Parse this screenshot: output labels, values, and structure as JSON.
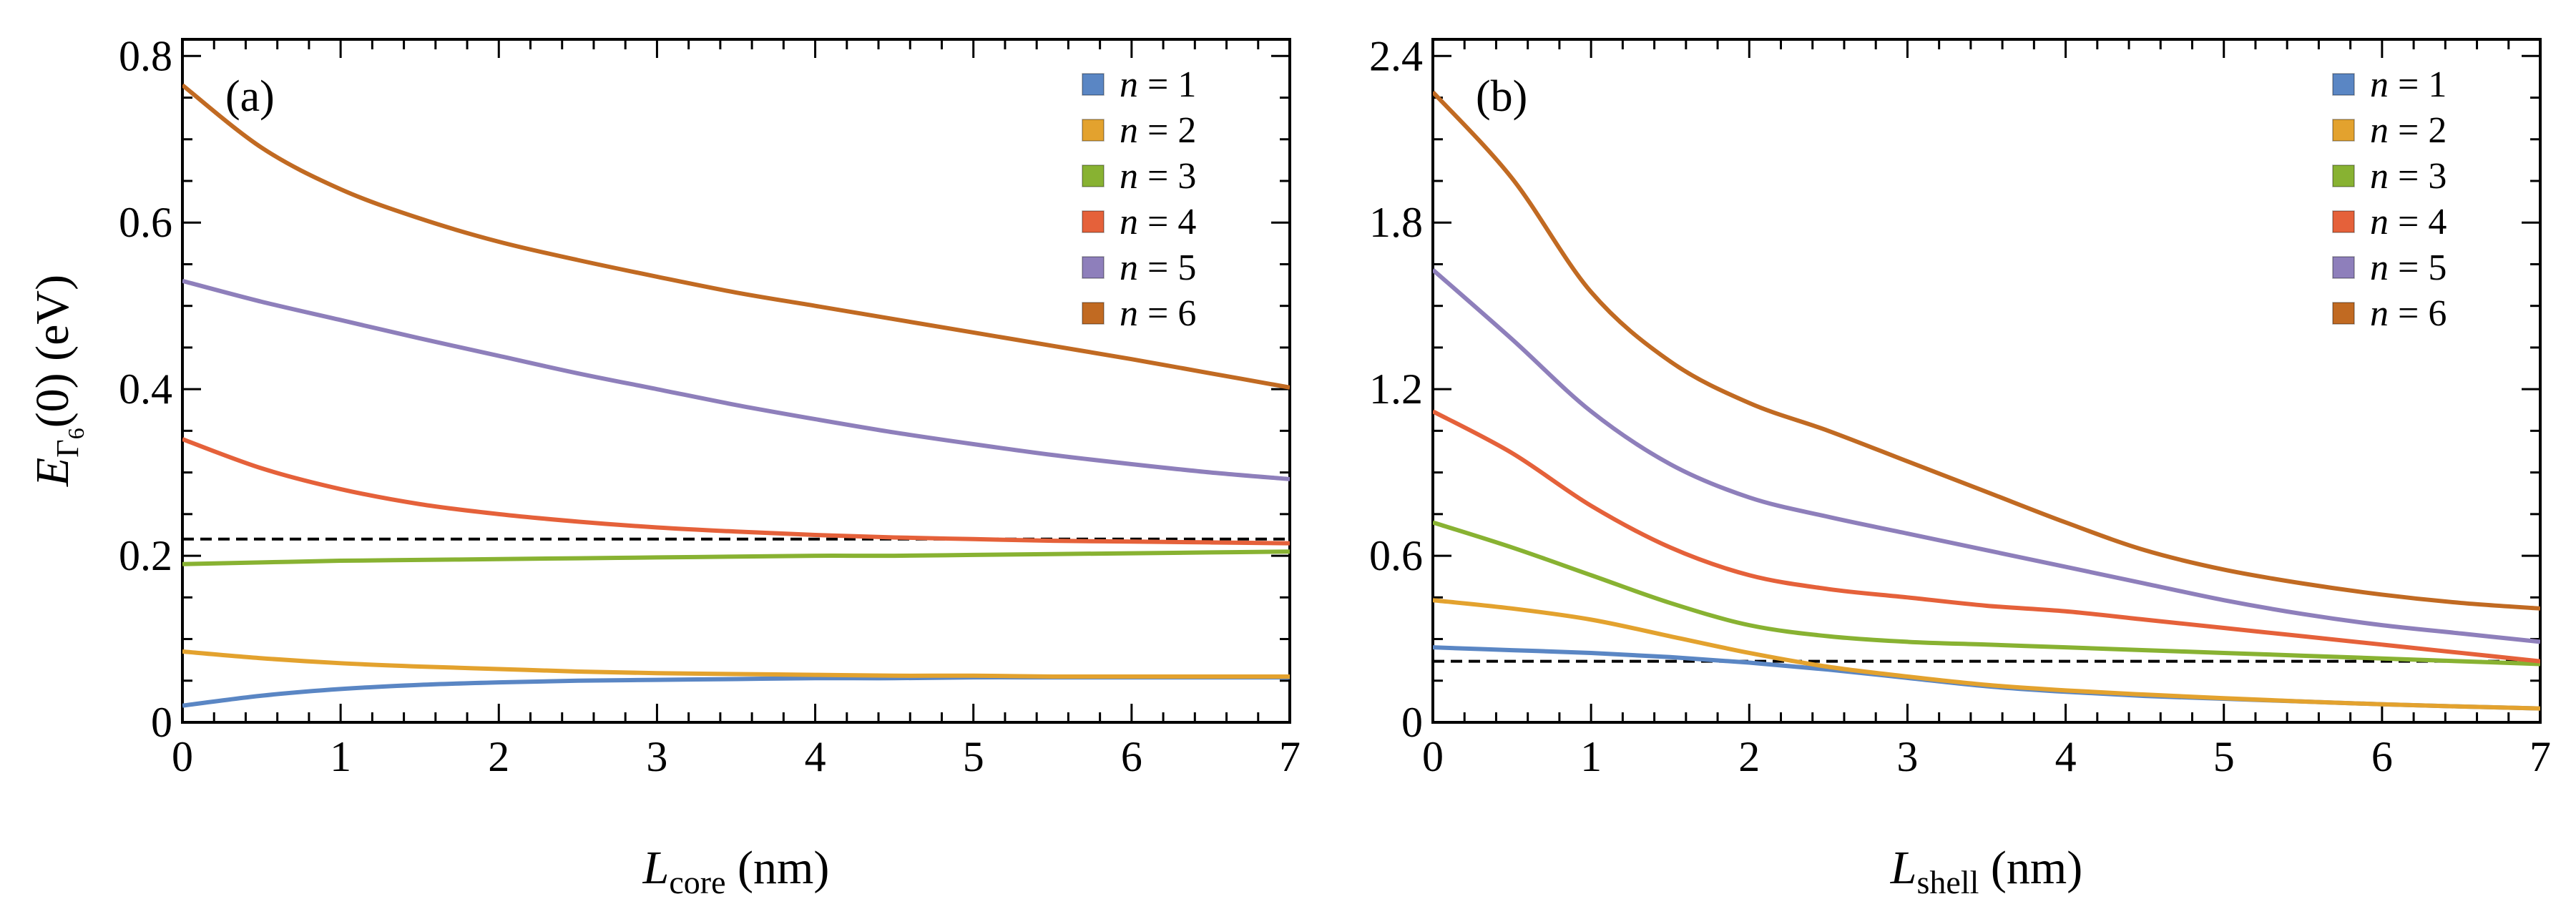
{
  "colors": {
    "n1": "#5a86c4",
    "n2": "#e3a22e",
    "n3": "#88b232",
    "n4": "#e5613a",
    "n5": "#8e7fbb",
    "n6": "#c16a22",
    "reference": "#000000"
  },
  "y_axis_label": {
    "main": "E",
    "sub": "Γ",
    "subsub": "6",
    "rest": "(0) (eV)"
  },
  "chart_data": [
    {
      "type": "line",
      "panel_label": "(a)",
      "xlabel": {
        "main": "L",
        "sub": "core",
        "rest": " (nm)"
      },
      "xlim": [
        0,
        7
      ],
      "ylim": [
        0,
        0.82
      ],
      "xticks": [
        0,
        1,
        2,
        3,
        4,
        5,
        6,
        7
      ],
      "xtick_labels": [
        "0",
        "1",
        "2",
        "3",
        "4",
        "5",
        "6",
        "7"
      ],
      "yticks": [
        0,
        0.2,
        0.4,
        0.6,
        0.8
      ],
      "ytick_labels": [
        "0",
        "0.2",
        "0.4",
        "0.6",
        "0.8"
      ],
      "reference_line": 0.22,
      "legend": [
        "n = 1",
        "n = 2",
        "n = 3",
        "n = 4",
        "n = 5",
        "n = 6"
      ],
      "legend_position": "top-right",
      "x": [
        0,
        0.5,
        1,
        1.5,
        2,
        2.5,
        3,
        3.5,
        4,
        4.5,
        5,
        5.5,
        6,
        6.5,
        7
      ],
      "series": [
        {
          "name": "n = 1",
          "values": [
            0.02,
            0.032,
            0.04,
            0.045,
            0.048,
            0.05,
            0.051,
            0.052,
            0.053,
            0.053,
            0.054,
            0.054,
            0.054,
            0.054,
            0.054
          ]
        },
        {
          "name": "n = 2",
          "values": [
            0.085,
            0.077,
            0.071,
            0.067,
            0.064,
            0.061,
            0.059,
            0.058,
            0.057,
            0.056,
            0.056,
            0.055,
            0.055,
            0.055,
            0.055
          ]
        },
        {
          "name": "n = 3",
          "values": [
            0.19,
            0.192,
            0.194,
            0.195,
            0.196,
            0.197,
            0.198,
            0.199,
            0.2,
            0.2,
            0.201,
            0.202,
            0.203,
            0.204,
            0.205
          ]
        },
        {
          "name": "n = 4",
          "values": [
            0.34,
            0.305,
            0.28,
            0.262,
            0.25,
            0.241,
            0.234,
            0.229,
            0.225,
            0.222,
            0.22,
            0.218,
            0.217,
            0.216,
            0.215
          ]
        },
        {
          "name": "n = 5",
          "values": [
            0.53,
            0.505,
            0.483,
            0.461,
            0.44,
            0.419,
            0.4,
            0.381,
            0.364,
            0.348,
            0.334,
            0.321,
            0.31,
            0.3,
            0.292
          ]
        },
        {
          "name": "n = 6",
          "values": [
            0.765,
            0.69,
            0.64,
            0.605,
            0.577,
            0.555,
            0.535,
            0.516,
            0.5,
            0.484,
            0.468,
            0.452,
            0.436,
            0.419,
            0.402
          ]
        }
      ]
    },
    {
      "type": "line",
      "panel_label": "(b)",
      "xlabel": {
        "main": "L",
        "sub": "shell",
        "rest": " (nm)"
      },
      "xlim": [
        0,
        7
      ],
      "ylim": [
        0,
        2.46
      ],
      "xticks": [
        0,
        1,
        2,
        3,
        4,
        5,
        6,
        7
      ],
      "xtick_labels": [
        "0",
        "1",
        "2",
        "3",
        "4",
        "5",
        "6",
        "7"
      ],
      "yticks": [
        0,
        0.6,
        1.2,
        1.8,
        2.4
      ],
      "ytick_labels": [
        "0",
        "0.6",
        "1.2",
        "1.8",
        "2.4"
      ],
      "reference_line": 0.22,
      "legend": [
        "n = 1",
        "n = 2",
        "n = 3",
        "n = 4",
        "n = 5",
        "n = 6"
      ],
      "legend_position": "top-right",
      "x": [
        0,
        0.5,
        1,
        1.5,
        2,
        2.5,
        3,
        3.5,
        4,
        4.5,
        5,
        5.5,
        6,
        6.5,
        7
      ],
      "series": [
        {
          "name": "n = 1",
          "values": [
            0.27,
            0.26,
            0.25,
            0.235,
            0.215,
            0.19,
            0.16,
            0.13,
            0.11,
            0.095,
            0.085,
            0.075,
            0.065,
            0.057,
            0.05
          ]
        },
        {
          "name": "n = 2",
          "values": [
            0.44,
            0.41,
            0.37,
            0.31,
            0.25,
            0.2,
            0.165,
            0.135,
            0.115,
            0.1,
            0.087,
            0.075,
            0.065,
            0.057,
            0.05
          ]
        },
        {
          "name": "n = 3",
          "values": [
            0.72,
            0.63,
            0.53,
            0.43,
            0.35,
            0.31,
            0.29,
            0.28,
            0.27,
            0.26,
            0.25,
            0.24,
            0.23,
            0.22,
            0.21
          ]
        },
        {
          "name": "n = 4",
          "values": [
            1.12,
            0.97,
            0.78,
            0.63,
            0.53,
            0.48,
            0.45,
            0.42,
            0.4,
            0.37,
            0.34,
            0.31,
            0.28,
            0.25,
            0.22
          ]
        },
        {
          "name": "n = 5",
          "values": [
            1.63,
            1.38,
            1.12,
            0.93,
            0.81,
            0.74,
            0.68,
            0.62,
            0.56,
            0.5,
            0.44,
            0.39,
            0.35,
            0.32,
            0.29
          ]
        },
        {
          "name": "n = 6",
          "values": [
            2.27,
            1.96,
            1.55,
            1.3,
            1.15,
            1.05,
            0.94,
            0.83,
            0.72,
            0.62,
            0.55,
            0.5,
            0.46,
            0.43,
            0.41
          ]
        }
      ]
    }
  ]
}
